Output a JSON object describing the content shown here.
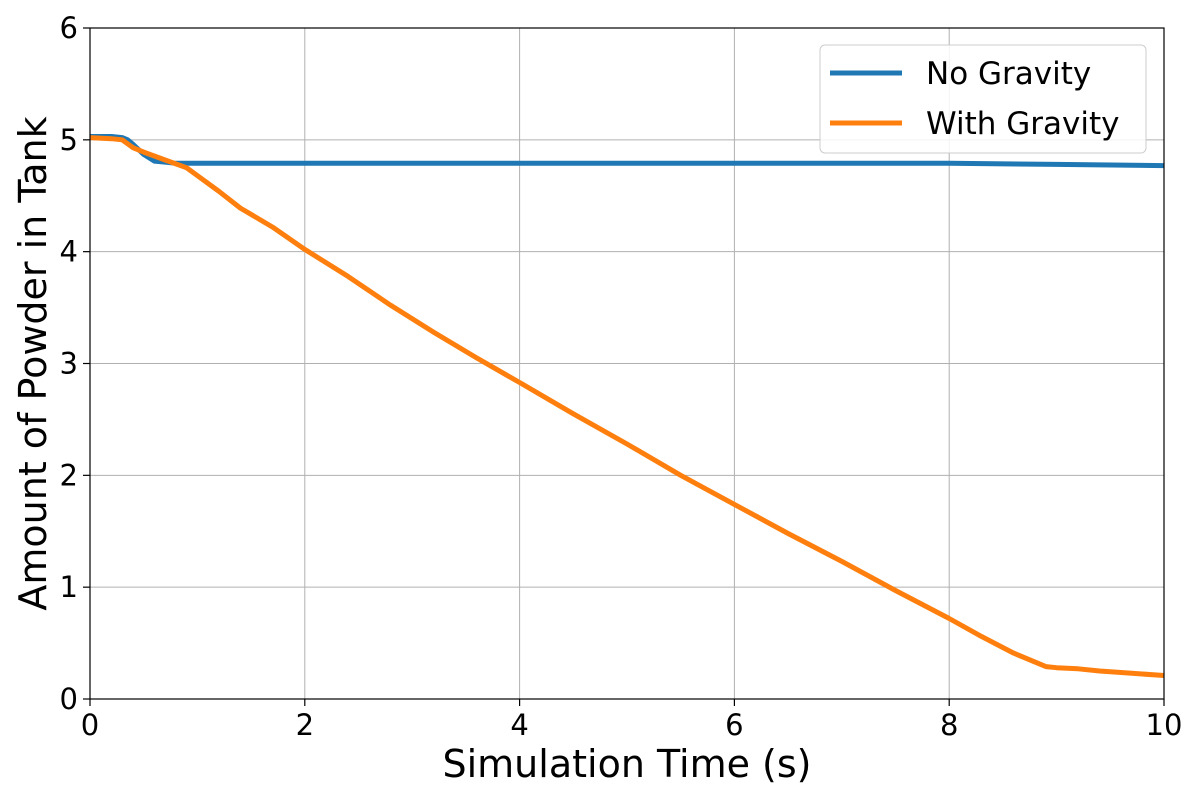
{
  "chart_data": {
    "type": "line",
    "title": "",
    "xlabel": "Simulation Time (s)",
    "ylabel": "Amount of Powder in Tank",
    "xlim": [
      0,
      10
    ],
    "ylim": [
      0,
      6
    ],
    "xticks": [
      0,
      2,
      4,
      6,
      8,
      10
    ],
    "yticks": [
      0,
      1,
      2,
      3,
      4,
      5,
      6
    ],
    "grid": true,
    "legend_position": "top-right",
    "series": [
      {
        "name": "No Gravity",
        "color": "#1f77b4",
        "x": [
          0,
          0.1,
          0.2,
          0.3,
          0.35,
          0.4,
          0.5,
          0.6,
          0.7,
          0.8,
          1,
          2,
          4,
          6,
          8,
          9,
          10
        ],
        "y": [
          5.03,
          5.03,
          5.03,
          5.02,
          5.0,
          4.96,
          4.87,
          4.81,
          4.8,
          4.79,
          4.79,
          4.79,
          4.79,
          4.79,
          4.79,
          4.78,
          4.77
        ]
      },
      {
        "name": "With Gravity",
        "color": "#ff7f0e",
        "x": [
          0,
          0.2,
          0.3,
          0.4,
          0.5,
          0.7,
          0.9,
          1.0,
          1.2,
          1.4,
          1.7,
          2.0,
          2.4,
          2.8,
          3.2,
          3.6,
          4.0,
          4.5,
          5.0,
          5.5,
          6.0,
          6.5,
          7.0,
          7.5,
          8.0,
          8.3,
          8.6,
          8.9,
          9.0,
          9.2,
          9.4,
          9.7,
          10.0
        ],
        "y": [
          5.02,
          5.01,
          5.0,
          4.93,
          4.89,
          4.82,
          4.75,
          4.68,
          4.54,
          4.39,
          4.22,
          4.02,
          3.78,
          3.52,
          3.28,
          3.05,
          2.83,
          2.55,
          2.28,
          2.0,
          1.74,
          1.48,
          1.23,
          0.97,
          0.72,
          0.56,
          0.41,
          0.29,
          0.28,
          0.27,
          0.25,
          0.23,
          0.21
        ]
      }
    ]
  }
}
